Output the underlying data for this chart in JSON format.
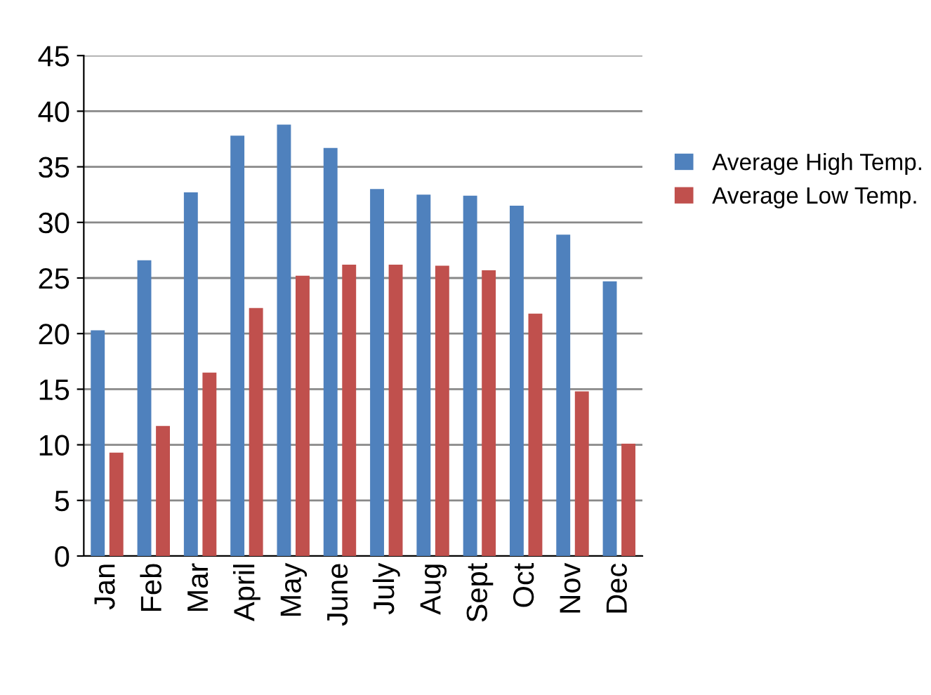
{
  "chart_data": {
    "type": "bar",
    "categories": [
      "Jan",
      "Feb",
      "Mar",
      "April",
      "May",
      "June",
      "July",
      "Aug",
      "Sept",
      "Oct",
      "Nov",
      "Dec"
    ],
    "series": [
      {
        "name": "Average High Temp.",
        "color": "#4f81bd",
        "values": [
          20.3,
          26.6,
          32.7,
          37.8,
          38.8,
          36.7,
          33.0,
          32.5,
          32.4,
          31.5,
          28.9,
          24.7
        ]
      },
      {
        "name": "Average Low Temp.",
        "color": "#c0504d",
        "values": [
          9.3,
          11.7,
          16.5,
          22.3,
          25.2,
          26.2,
          26.2,
          26.1,
          25.7,
          21.8,
          14.8,
          10.1
        ]
      }
    ],
    "ylim": [
      0,
      45
    ],
    "yticks": [
      0,
      5,
      10,
      15,
      20,
      25,
      30,
      35,
      40,
      45
    ],
    "grid": "y",
    "legend": "right"
  }
}
